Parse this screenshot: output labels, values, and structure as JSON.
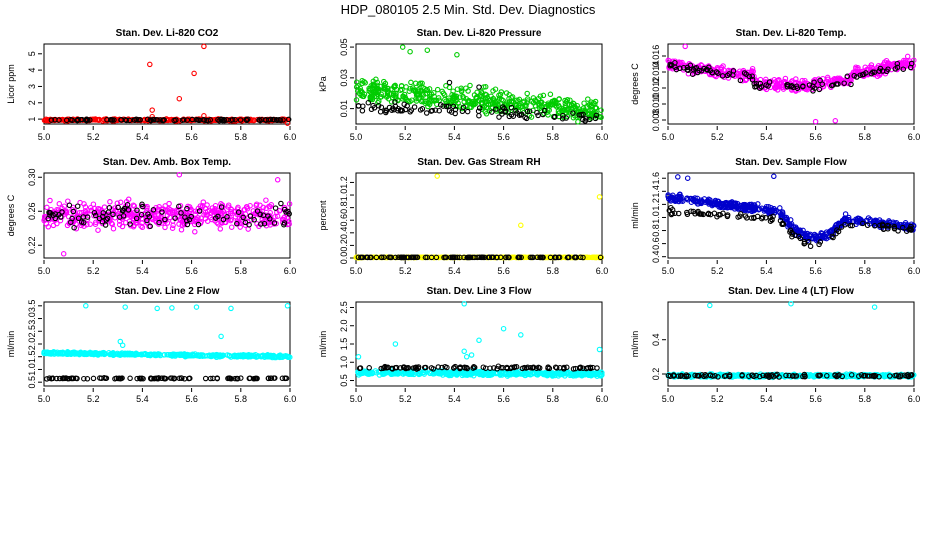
{
  "figure_title": "HDP_080105  2.5 Min. Std. Dev. Diagnostics",
  "colors": {
    "background": "#ffffff",
    "axis": "#000000",
    "reference_series": "#000000"
  },
  "chart_data": [
    {
      "type": "scatter",
      "title": "Stan. Dev. Li-820 CO2",
      "ylabel": "Licor ppm",
      "xlabel": "",
      "xlim": [
        5.0,
        6.0
      ],
      "ylim": [
        0.7,
        5.6
      ],
      "xticks": [
        "5.0",
        "5.2",
        "5.4",
        "5.6",
        "5.8",
        "6.0"
      ],
      "yticks": [
        "1",
        "2",
        "3",
        "4",
        "5"
      ],
      "series": [
        {
          "name": "main",
          "color": "#ff0000",
          "n": 350,
          "base": 0.95,
          "base_end": 0.95,
          "spread": 0.08,
          "drift": 0,
          "outliers": [
            [
              5.43,
              4.35
            ],
            [
              5.44,
              1.55
            ],
            [
              5.44,
              1.15
            ],
            [
              5.55,
              2.25
            ],
            [
              5.61,
              3.8
            ],
            [
              5.65,
              5.45
            ],
            [
              5.65,
              1.2
            ],
            [
              5.99,
              0.75
            ]
          ]
        },
        {
          "name": "reference",
          "color": "#000000",
          "n": 90,
          "base": 0.95,
          "base_end": 0.95,
          "spread": 0.06,
          "drift": 0,
          "outliers": []
        }
      ]
    },
    {
      "type": "scatter",
      "title": "Stan. Dev. Li-820 Pressure",
      "ylabel": "kPa",
      "xlabel": "",
      "xlim": [
        5.0,
        6.0
      ],
      "ylim": [
        0.0,
        0.052
      ],
      "xticks": [
        "5.0",
        "5.2",
        "5.4",
        "5.6",
        "5.8",
        "6.0"
      ],
      "yticks": [
        "0.01",
        "0.03",
        "0.05"
      ],
      "series": [
        {
          "name": "main",
          "color": "#00cc00",
          "n": 480,
          "base": 0.022,
          "base_end": 0.008,
          "spread": 0.011,
          "drift": 0,
          "outliers": [
            [
              5.19,
              0.05
            ],
            [
              5.22,
              0.047
            ],
            [
              5.29,
              0.048
            ],
            [
              5.41,
              0.045
            ]
          ]
        },
        {
          "name": "reference",
          "color": "#000000",
          "n": 95,
          "base": 0.012,
          "base_end": 0.004,
          "spread": 0.005,
          "drift": 0,
          "outliers": [
            [
              5.38,
              0.027
            ],
            [
              5.5,
              0.024
            ]
          ]
        }
      ]
    },
    {
      "type": "scatter",
      "title": "Stan. Dev. Li-820 Temp.",
      "ylabel": "degrees C",
      "xlabel": "",
      "xlim": [
        5.0,
        6.0
      ],
      "ylim": [
        0.0075,
        0.0175
      ],
      "xticks": [
        "5.0",
        "5.2",
        "5.4",
        "5.6",
        "5.8",
        "6.0"
      ],
      "yticks": [
        "0.008",
        "0.010",
        "0.012",
        "0.014",
        "0.016"
      ],
      "series": [
        {
          "name": "main",
          "color": "#ff00ff",
          "n": 470,
          "base": 0.015,
          "base_end": 0.0152,
          "spread": 0.0011,
          "drift": 1,
          "outliers": [
            [
              5.07,
              0.0172
            ],
            [
              5.6,
              0.0078
            ],
            [
              5.68,
              0.0079
            ]
          ]
        },
        {
          "name": "reference",
          "color": "#000000",
          "n": 95,
          "base": 0.0148,
          "base_end": 0.015,
          "spread": 0.0008,
          "drift": 1,
          "outliers": []
        }
      ]
    },
    {
      "type": "scatter",
      "title": "Stan. Dev. Amb. Box Temp.",
      "ylabel": "degrees C",
      "xlabel": "",
      "xlim": [
        5.0,
        6.0
      ],
      "ylim": [
        0.205,
        0.305
      ],
      "xticks": [
        "5.0",
        "5.2",
        "5.4",
        "5.6",
        "5.8",
        "6.0"
      ],
      "yticks": [
        "0.22",
        "0.26",
        "0.30"
      ],
      "series": [
        {
          "name": "main",
          "color": "#ff00ff",
          "n": 470,
          "base": 0.255,
          "base_end": 0.255,
          "spread": 0.022,
          "drift": 0,
          "outliers": [
            [
              5.55,
              0.303
            ],
            [
              5.08,
              0.21
            ],
            [
              5.95,
              0.297
            ]
          ]
        },
        {
          "name": "reference",
          "color": "#000000",
          "n": 95,
          "base": 0.255,
          "base_end": 0.255,
          "spread": 0.018,
          "drift": 0,
          "outliers": []
        }
      ]
    },
    {
      "type": "scatter",
      "title": "Stan. Dev. Gas Stream RH",
      "ylabel": "percent",
      "xlabel": "",
      "xlim": [
        5.0,
        6.0
      ],
      "ylim": [
        0.0,
        1.35
      ],
      "xticks": [
        "5.0",
        "5.2",
        "5.4",
        "5.6",
        "5.8",
        "6.0"
      ],
      "yticks": [
        "0.0",
        "0.2",
        "0.4",
        "0.6",
        "0.8",
        "1.0",
        "1.2"
      ],
      "series": [
        {
          "name": "main",
          "color": "#ffff00",
          "n": 300,
          "base": 0.01,
          "base_end": 0.01,
          "spread": 0.004,
          "drift": 0,
          "outliers": [
            [
              5.33,
              1.3
            ],
            [
              5.67,
              0.52
            ],
            [
              5.99,
              0.97
            ],
            [
              5.01,
              0.0
            ]
          ]
        },
        {
          "name": "reference",
          "color": "#000000",
          "n": 110,
          "base": 0.01,
          "base_end": 0.01,
          "spread": 0.003,
          "drift": 0,
          "outliers": []
        }
      ]
    },
    {
      "type": "scatter",
      "title": "Stan. Dev. Sample Flow",
      "ylabel": "ml/min",
      "xlabel": "",
      "xlim": [
        5.0,
        6.0
      ],
      "ylim": [
        0.38,
        1.68
      ],
      "xticks": [
        "5.0",
        "5.2",
        "5.4",
        "5.6",
        "5.8",
        "6.0"
      ],
      "yticks": [
        "0.4",
        "0.6",
        "0.8",
        "1.0",
        "1.2",
        "1.4",
        "1.6"
      ],
      "series": [
        {
          "name": "main",
          "color": "#0000cc",
          "n": 460,
          "base": 1.3,
          "base_end": 0.85,
          "spread": 0.09,
          "drift": 2,
          "outliers": [
            [
              5.43,
              1.63
            ],
            [
              5.04,
              1.62
            ],
            [
              5.08,
              1.6
            ]
          ]
        },
        {
          "name": "reference",
          "color": "#000000",
          "n": 95,
          "base": 1.1,
          "base_end": 0.82,
          "spread": 0.06,
          "drift": 2,
          "outliers": []
        }
      ]
    },
    {
      "type": "scatter",
      "title": "Stan. Dev. Line 2 Flow",
      "ylabel": "ml/min",
      "xlabel": "",
      "xlim": [
        5.0,
        6.0
      ],
      "ylim": [
        0.35,
        3.65
      ],
      "xticks": [
        "5.0",
        "5.2",
        "5.4",
        "5.6",
        "5.8",
        "6.0"
      ],
      "yticks": [
        "0.5",
        "1.0",
        "1.5",
        "2.0",
        "2.5",
        "3.0",
        "3.5"
      ],
      "series": [
        {
          "name": "main",
          "color": "#00ffff",
          "n": 420,
          "base": 1.65,
          "base_end": 1.5,
          "spread": 0.07,
          "drift": 0,
          "outliers": [
            [
              5.17,
              3.5
            ],
            [
              5.33,
              3.45
            ],
            [
              5.46,
              3.4
            ],
            [
              5.52,
              3.42
            ],
            [
              5.62,
              3.45
            ],
            [
              5.76,
              3.4
            ],
            [
              5.99,
              3.5
            ],
            [
              5.31,
              2.1
            ],
            [
              5.32,
              1.95
            ],
            [
              5.72,
              2.3
            ]
          ]
        },
        {
          "name": "reference",
          "color": "#000000",
          "n": 100,
          "base": 0.65,
          "base_end": 0.65,
          "spread": 0.03,
          "drift": 0,
          "outliers": []
        }
      ]
    },
    {
      "type": "scatter",
      "title": "Stan. Dev. Line 3 Flow",
      "ylabel": "ml/min",
      "xlabel": "",
      "xlim": [
        5.0,
        6.0
      ],
      "ylim": [
        0.35,
        2.65
      ],
      "xticks": [
        "5.0",
        "5.2",
        "5.4",
        "5.6",
        "5.8",
        "6.0"
      ],
      "yticks": [
        "0.5",
        "1.0",
        "1.5",
        "2.0",
        "2.5"
      ],
      "series": [
        {
          "name": "main",
          "color": "#00ffff",
          "n": 480,
          "base": 0.72,
          "base_end": 0.68,
          "spread": 0.09,
          "drift": 0,
          "outliers": [
            [
              5.44,
              2.6
            ],
            [
              5.6,
              1.92
            ],
            [
              5.67,
              1.75
            ],
            [
              5.5,
              1.6
            ],
            [
              5.16,
              1.5
            ],
            [
              5.99,
              1.35
            ],
            [
              5.44,
              1.3
            ],
            [
              5.45,
              1.15
            ],
            [
              5.47,
              1.2
            ],
            [
              5.01,
              1.15
            ]
          ]
        },
        {
          "name": "reference",
          "color": "#000000",
          "n": 100,
          "base": 0.85,
          "base_end": 0.85,
          "spread": 0.05,
          "drift": 0,
          "outliers": []
        }
      ]
    },
    {
      "type": "scatter",
      "title": "Stan. Dev. Line 4 (LT) Flow",
      "ylabel": "ml/min",
      "xlabel": "",
      "xlim": [
        5.0,
        6.0
      ],
      "ylim": [
        0.13,
        0.62
      ],
      "xticks": [
        "5.0",
        "5.2",
        "5.4",
        "5.6",
        "5.8",
        "6.0"
      ],
      "yticks": [
        "0.2",
        "0.4"
      ],
      "series": [
        {
          "name": "main",
          "color": "#00ffff",
          "n": 460,
          "base": 0.19,
          "base_end": 0.19,
          "spread": 0.012,
          "drift": 0,
          "outliers": [
            [
              5.17,
              0.6
            ],
            [
              5.5,
              0.61
            ],
            [
              5.84,
              0.59
            ]
          ]
        },
        {
          "name": "reference",
          "color": "#000000",
          "n": 100,
          "base": 0.19,
          "base_end": 0.19,
          "spread": 0.01,
          "drift": 0,
          "outliers": []
        }
      ]
    }
  ]
}
